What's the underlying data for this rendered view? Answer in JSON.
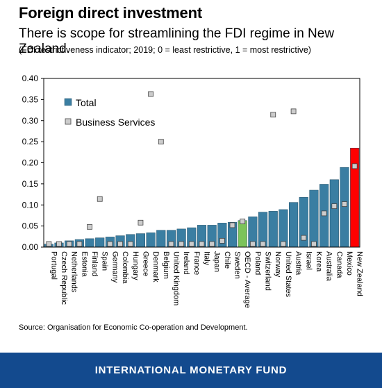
{
  "title": "Foreign direct investment",
  "subtitle": "There is scope for streamlining the FDI regime in New Zealand.",
  "note": "(FDI restrictiveness indicator; 2019; 0 = least restrictive, 1 = most restrictive)",
  "source": "Source: Organisation for Economic Co-operation and Development.",
  "footer": "INTERNATIONAL MONETARY FUND",
  "colors": {
    "total": "#3a7ea2",
    "oecd": "#7cc35a",
    "nz": "#ff0000",
    "business_services": "#cccccc"
  },
  "chart_data": {
    "type": "bar",
    "ylim": [
      0,
      0.4
    ],
    "yticks": [
      "0.00",
      "0.05",
      "0.10",
      "0.15",
      "0.20",
      "0.25",
      "0.30",
      "0.35",
      "0.40"
    ],
    "legend_position": "top-left",
    "categories": [
      "Portugal",
      "Czech Republic",
      "Netherlands",
      "Estonia",
      "Finland",
      "Spain",
      "Germany",
      "Colombia",
      "Hungary",
      "Greece",
      "Denmark",
      "Belgium",
      "United Kingdom",
      "Ireland",
      "France",
      "Italy",
      "Japan",
      "Chile",
      "Sweden",
      "OECD - Average",
      "Poland",
      "Switzerland",
      "Norway",
      "United States",
      "Austria",
      "Israel",
      "Korea",
      "Australia",
      "Canada",
      "Mexico",
      "New Zealand"
    ],
    "series": [
      {
        "name": "Total",
        "kind": "bar",
        "values": [
          0.007,
          0.01,
          0.015,
          0.018,
          0.02,
          0.022,
          0.024,
          0.027,
          0.03,
          0.032,
          0.034,
          0.04,
          0.04,
          0.043,
          0.046,
          0.052,
          0.052,
          0.057,
          0.059,
          0.063,
          0.072,
          0.083,
          0.085,
          0.089,
          0.106,
          0.118,
          0.135,
          0.149,
          0.16,
          0.189,
          0.235
        ]
      },
      {
        "name": "Business Services",
        "kind": "marker",
        "values": [
          0.002,
          0.003,
          0.002,
          0.002,
          0.048,
          0.114,
          0.002,
          0.002,
          0.002,
          0.058,
          0.363,
          0.25,
          0.002,
          0.002,
          0.004,
          0.002,
          0.002,
          0.015,
          0.052,
          0.061,
          0.002,
          0.003,
          0.314,
          0.003,
          0.322,
          0.022,
          0.002,
          0.08,
          0.097,
          0.102,
          0.192
        ]
      }
    ]
  }
}
